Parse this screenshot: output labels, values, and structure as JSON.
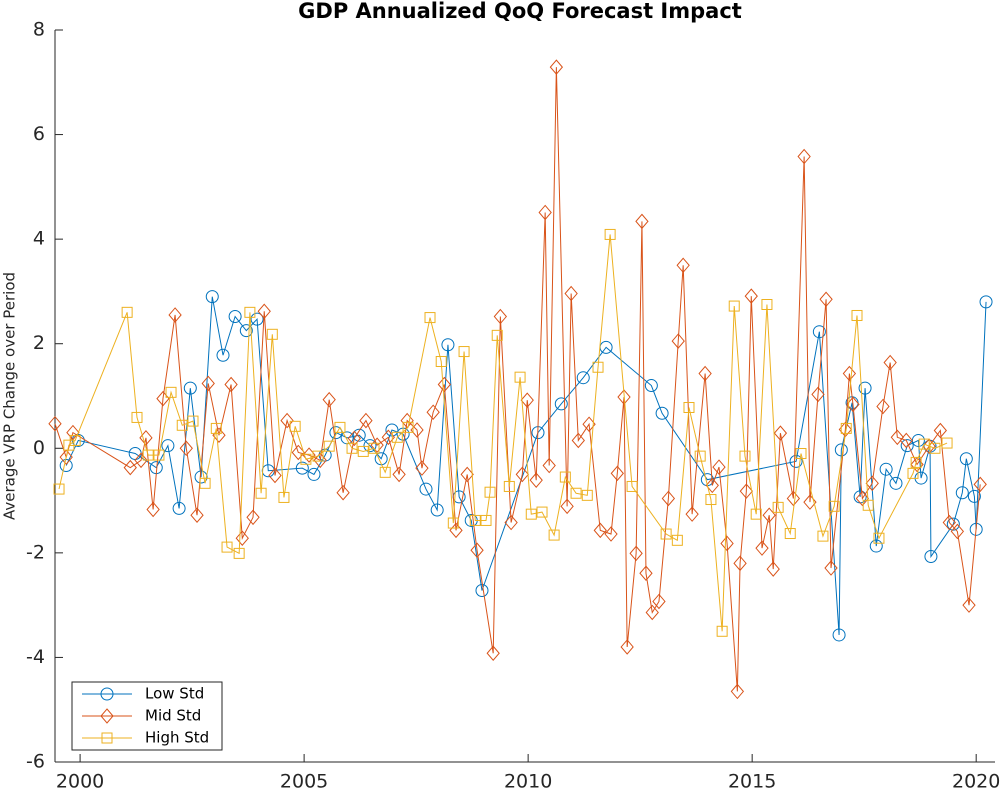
{
  "chart_data": {
    "type": "line",
    "title": "GDP Annualized QoQ Forecast Impact",
    "y_label": "Average VRP Change over Period",
    "xlim": [
      1999.44,
      2020.42
    ],
    "xticks": [
      2000,
      2005,
      2010,
      2015,
      2020
    ],
    "ylim": [
      -6,
      8
    ],
    "yticks": [
      -6,
      -4,
      -2,
      0,
      2,
      4,
      6,
      8
    ],
    "grid": false,
    "legend_position": "southwest",
    "series": [
      {
        "name": "Low Std",
        "color": "#0072BD",
        "marker": "circle",
        "x": [
          1999.69,
          1999.96,
          2001.23,
          2001.7,
          2001.96,
          2002.21,
          2002.46,
          2002.7,
          2002.95,
          2003.19,
          2003.46,
          2003.71,
          2003.95,
          2004.2,
          2004.96,
          2005.22,
          2005.47,
          2005.71,
          2005.96,
          2006.23,
          2006.47,
          2006.72,
          2006.96,
          2007.21,
          2007.72,
          2007.97,
          2008.21,
          2008.46,
          2008.73,
          2008.97,
          2010.22,
          2010.74,
          2011.23,
          2011.74,
          2012.75,
          2012.99,
          2014.0,
          2015.98,
          2016.5,
          2016.94,
          2016.99,
          2017.23,
          2017.41,
          2017.52,
          2017.77,
          2017.99,
          2018.21,
          2018.46,
          2018.71,
          2018.77,
          2018.97,
          2018.99,
          2019.49,
          2019.69,
          2019.78,
          2019.96,
          2020.0,
          2020.22
        ],
        "values": [
          -0.33,
          0.15,
          -0.1,
          -0.37,
          0.05,
          -1.15,
          1.15,
          -0.55,
          2.9,
          1.78,
          2.52,
          2.25,
          2.47,
          -0.43,
          -0.38,
          -0.5,
          -0.13,
          0.3,
          0.2,
          0.25,
          0.05,
          -0.2,
          0.35,
          0.27,
          -0.78,
          -1.18,
          1.98,
          -0.93,
          -1.38,
          -2.72,
          0.3,
          0.85,
          1.35,
          1.93,
          1.2,
          0.67,
          -0.6,
          -0.25,
          2.23,
          -3.57,
          -0.03,
          0.87,
          -0.93,
          1.15,
          -1.87,
          -0.4,
          -0.67,
          0.05,
          0.15,
          -0.57,
          0.04,
          -2.07,
          -1.45,
          -0.85,
          -0.2,
          -0.92,
          -1.55,
          2.8
        ]
      },
      {
        "name": "Mid Std",
        "color": "#D95319",
        "marker": "diamond",
        "x": [
          1999.44,
          1999.69,
          1999.84,
          2001.12,
          2001.36,
          2001.47,
          2001.63,
          2001.85,
          2002.12,
          2002.37,
          2002.61,
          2002.86,
          2003.1,
          2003.37,
          2003.62,
          2003.86,
          2004.11,
          2004.35,
          2004.62,
          2004.87,
          2005.11,
          2005.36,
          2005.56,
          2005.87,
          2006.12,
          2006.38,
          2006.63,
          2006.88,
          2007.12,
          2007.3,
          2007.52,
          2007.63,
          2007.88,
          2008.13,
          2008.39,
          2008.64,
          2008.86,
          2009.22,
          2009.38,
          2009.62,
          2009.87,
          2009.98,
          2010.18,
          2010.38,
          2010.47,
          2010.63,
          2010.87,
          2010.96,
          2011.12,
          2011.36,
          2011.61,
          2011.85,
          2011.99,
          2012.14,
          2012.21,
          2012.41,
          2012.54,
          2012.63,
          2012.77,
          2012.92,
          2013.13,
          2013.35,
          2013.46,
          2013.66,
          2013.95,
          2014.11,
          2014.26,
          2014.44,
          2014.67,
          2014.73,
          2014.87,
          2014.98,
          2015.22,
          2015.38,
          2015.47,
          2015.63,
          2015.92,
          2016.16,
          2016.29,
          2016.47,
          2016.65,
          2016.76,
          2017.08,
          2017.17,
          2017.25,
          2017.46,
          2017.68,
          2017.92,
          2018.08,
          2018.24,
          2018.44,
          2018.68,
          2018.95,
          2019.2,
          2019.4,
          2019.58,
          2019.84,
          2020.09
        ],
        "values": [
          0.47,
          -0.17,
          0.3,
          -0.37,
          -0.23,
          0.2,
          -1.17,
          0.95,
          2.55,
          0,
          -1.28,
          1.24,
          0.25,
          1.22,
          -1.72,
          -1.32,
          2.62,
          -0.52,
          0.53,
          -0.08,
          -0.13,
          -0.23,
          0.93,
          -0.85,
          0.19,
          0.53,
          0.06,
          0.21,
          -0.5,
          0.53,
          0.35,
          -0.38,
          0.69,
          1.22,
          -1.57,
          -0.5,
          -1.95,
          -3.92,
          2.52,
          -1.42,
          -0.5,
          0.92,
          -0.61,
          4.51,
          -0.33,
          7.29,
          -1.11,
          2.96,
          0.15,
          0.46,
          -1.57,
          -1.64,
          -0.48,
          0.98,
          -3.8,
          -2.01,
          4.34,
          -2.39,
          -3.14,
          -2.93,
          -0.96,
          2.05,
          3.5,
          -1.26,
          1.43,
          -0.71,
          -0.36,
          -1.82,
          -4.65,
          -2.2,
          -0.82,
          2.91,
          -1.91,
          -1.28,
          -2.31,
          0.29,
          -0.96,
          5.58,
          -1.03,
          1.03,
          2.85,
          -2.29,
          0.36,
          1.43,
          0.84,
          -0.96,
          -0.67,
          0.8,
          1.64,
          0.21,
          0.15,
          -0.31,
          0.04,
          0.34,
          -1.42,
          -1.59,
          -3.0,
          -0.69
        ]
      },
      {
        "name": "High Std",
        "color": "#EDB120",
        "marker": "square",
        "x": [
          1999.53,
          1999.75,
          1999.89,
          2001.05,
          2001.27,
          2001.52,
          2001.76,
          2002.03,
          2002.28,
          2002.52,
          2002.79,
          2003.04,
          2003.28,
          2003.55,
          2003.79,
          2004.04,
          2004.29,
          2004.55,
          2004.8,
          2005.04,
          2005.31,
          2005.56,
          2005.8,
          2006.07,
          2006.32,
          2006.56,
          2006.81,
          2007.08,
          2007.32,
          2007.81,
          2008.06,
          2008.33,
          2008.57,
          2008.82,
          2009.06,
          2009.15,
          2009.31,
          2009.58,
          2009.82,
          2010.07,
          2010.31,
          2010.58,
          2010.83,
          2011.07,
          2011.32,
          2011.56,
          2011.83,
          2012.32,
          2013.08,
          2013.33,
          2013.59,
          2013.84,
          2014.08,
          2014.33,
          2014.6,
          2014.84,
          2015.09,
          2015.33,
          2015.58,
          2015.85,
          2016.09,
          2016.58,
          2016.83,
          2017.1,
          2017.34,
          2017.59,
          2017.83,
          2018.59,
          2018.66,
          2018.84,
          2019.08,
          2019.35
        ],
        "values": [
          -0.78,
          0.06,
          0.15,
          2.6,
          0.59,
          -0.13,
          -0.13,
          1.07,
          0.44,
          0.52,
          -0.67,
          0.38,
          -1.89,
          -2.01,
          2.6,
          -0.86,
          2.18,
          -0.94,
          0.42,
          -0.21,
          -0.15,
          0.04,
          0.4,
          0,
          -0.06,
          0,
          -0.46,
          0.21,
          0.4,
          2.5,
          1.66,
          -1.43,
          1.85,
          -1.38,
          -1.38,
          -0.84,
          2.16,
          -0.73,
          1.36,
          -1.26,
          -1.22,
          -1.66,
          -0.55,
          -0.86,
          -0.9,
          1.55,
          4.09,
          -0.73,
          -1.64,
          -1.76,
          0.78,
          -0.15,
          -0.98,
          -3.5,
          2.72,
          -0.15,
          -1.26,
          2.75,
          -1.13,
          -1.63,
          -0.1,
          -1.68,
          -1.11,
          0.38,
          2.54,
          -1.09,
          -1.72,
          -0.48,
          -0.27,
          0.08,
          0,
          0.1
        ]
      }
    ]
  }
}
